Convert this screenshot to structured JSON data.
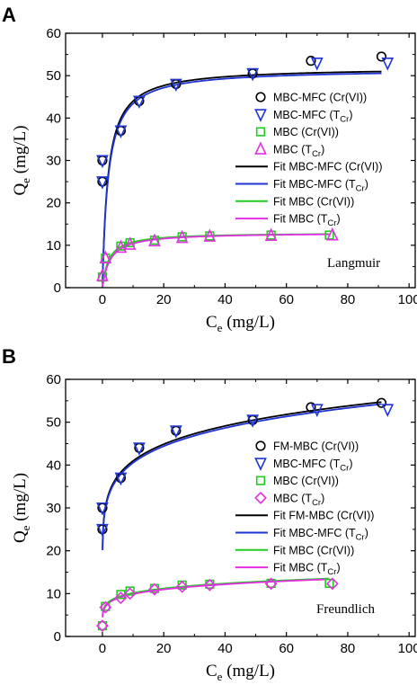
{
  "chart_data": [
    {
      "panel": "A",
      "type": "scatter",
      "title": "",
      "xlabel_main": "C",
      "xlabel_sub": "e",
      "xlabel_unit": " (mg/L)",
      "ylabel_main": "Q",
      "ylabel_sub": "e",
      "ylabel_unit": " (mg/L)",
      "xlim": [
        -12,
        102
      ],
      "ylim": [
        0,
        60
      ],
      "xticks": [
        0,
        20,
        40,
        60,
        80,
        100
      ],
      "yticks": [
        0,
        10,
        20,
        30,
        40,
        50,
        60
      ],
      "grid": false,
      "legend_position": "right",
      "annotation": "Langmuir",
      "series": [
        {
          "name": "MBC-MFC (Cr(VI))",
          "marker": "circle",
          "color": "#000000",
          "x": [
            0,
            0,
            6,
            12,
            24,
            49,
            68,
            91
          ],
          "y": [
            25,
            30,
            37,
            44,
            48,
            50.5,
            53.5,
            54.5
          ]
        },
        {
          "name": "MBC-MFC (T",
          "name_sub": "Cr",
          "name_tail": ")",
          "marker": "triangle-down",
          "color": "#1f35d6",
          "x": [
            0,
            0,
            6,
            12,
            24,
            49,
            70,
            93
          ],
          "y": [
            25,
            30,
            37,
            44,
            48,
            50.5,
            53,
            53
          ]
        },
        {
          "name": "MBC (Cr(VI))",
          "marker": "square",
          "color": "#22cc22",
          "x": [
            0,
            1,
            6,
            9,
            17,
            26,
            35,
            55,
            74
          ],
          "y": [
            2.5,
            7,
            9.8,
            10.6,
            11.2,
            12,
            12.2,
            12.4,
            12.4
          ]
        },
        {
          "name": "MBC (T",
          "name_sub": "Cr",
          "name_tail": ")",
          "marker": "triangle-up",
          "color": "#e62ee6",
          "x": [
            0,
            1,
            6,
            9,
            17,
            26,
            35,
            55,
            75
          ],
          "y": [
            2.8,
            7,
            9.5,
            10.2,
            11,
            11.8,
            12.1,
            12.3,
            12.4
          ]
        }
      ],
      "fits": [
        {
          "name": "Fit MBC-MFC (Cr(VI))",
          "color": "#000000",
          "model": "langmuir",
          "qmax": 52.0,
          "k": 0.55,
          "x_from": 0.04,
          "x_to": 91
        },
        {
          "name": "Fit MBC-MFC (T",
          "name_sub": "Cr",
          "name_tail": ")",
          "color": "#1f35d6",
          "model": "langmuir",
          "qmax": 51.6,
          "k": 0.53,
          "x_from": 0.04,
          "x_to": 91
        },
        {
          "name": "Fit MBC (Cr(VI))",
          "color": "#22cc22",
          "model": "langmuir",
          "qmax": 13.0,
          "k": 0.48,
          "x_from": 0.04,
          "x_to": 74
        },
        {
          "name": "Fit MBC (T",
          "name_sub": "Cr",
          "name_tail": ")",
          "color": "#e62ee6",
          "model": "langmuir",
          "qmax": 13.0,
          "k": 0.4,
          "x_from": 0.04,
          "x_to": 74
        }
      ]
    },
    {
      "panel": "B",
      "type": "scatter",
      "title": "",
      "xlabel_main": "C",
      "xlabel_sub": "e",
      "xlabel_unit": " (mg/L)",
      "ylabel_main": "Q",
      "ylabel_sub": "e",
      "ylabel_unit": " (mg/L)",
      "xlim": [
        -12,
        102
      ],
      "ylim": [
        0,
        60
      ],
      "xticks": [
        0,
        20,
        40,
        60,
        80,
        100
      ],
      "yticks": [
        0,
        10,
        20,
        30,
        40,
        50,
        60
      ],
      "grid": false,
      "legend_position": "right",
      "annotation": "Freundlich",
      "series": [
        {
          "name": "FM-MBC (Cr(VI))",
          "marker": "circle",
          "color": "#000000",
          "x": [
            0,
            0,
            6,
            12,
            24,
            49,
            68,
            91
          ],
          "y": [
            25,
            30,
            37,
            44,
            48,
            50.5,
            53.5,
            54.5
          ]
        },
        {
          "name": "MBC-MFC (T",
          "name_sub": "Cr",
          "name_tail": ")",
          "marker": "triangle-down",
          "color": "#1f35d6",
          "x": [
            0,
            0,
            6,
            12,
            24,
            49,
            70,
            93
          ],
          "y": [
            25,
            30,
            37,
            44,
            48,
            50.5,
            53,
            53
          ]
        },
        {
          "name": "MBC (Cr(VI))",
          "marker": "square",
          "color": "#22cc22",
          "x": [
            0,
            1,
            6,
            9,
            17,
            26,
            35,
            55,
            74
          ],
          "y": [
            2.5,
            7,
            9.8,
            10.6,
            11.2,
            12,
            12.2,
            12.4,
            12.4
          ]
        },
        {
          "name": "MBC (T",
          "name_sub": "Cr",
          "name_tail": ")",
          "marker": "diamond",
          "color": "#e62ee6",
          "x": [
            0,
            1,
            6,
            9,
            17,
            26,
            35,
            55,
            75
          ],
          "y": [
            2.5,
            6.8,
            9,
            10,
            11,
            11.6,
            12,
            12.3,
            12.3
          ]
        }
      ],
      "fits": [
        {
          "name": "Fit FM-MBC (Cr(VI))",
          "color": "#000000",
          "model": "freundlich",
          "kf": 30.3,
          "n": 0.131,
          "x_from": 0.05,
          "x_to": 91
        },
        {
          "name": "Fit MBC-MFC (T",
          "name_sub": "Cr",
          "name_tail": ")",
          "color": "#1f35d6",
          "model": "freundlich",
          "kf": 29.9,
          "n": 0.132,
          "x_from": 0.05,
          "x_to": 91
        },
        {
          "name": "Fit MBC (Cr(VI))",
          "color": "#22cc22",
          "model": "freundlich",
          "kf": 7.3,
          "n": 0.143,
          "x_from": 0.05,
          "x_to": 74
        },
        {
          "name": "Fit MBC (T",
          "name_sub": "Cr",
          "name_tail": ")",
          "color": "#e62ee6",
          "model": "freundlich",
          "kf": 7.0,
          "n": 0.15,
          "x_from": 0.05,
          "x_to": 74
        }
      ]
    }
  ]
}
